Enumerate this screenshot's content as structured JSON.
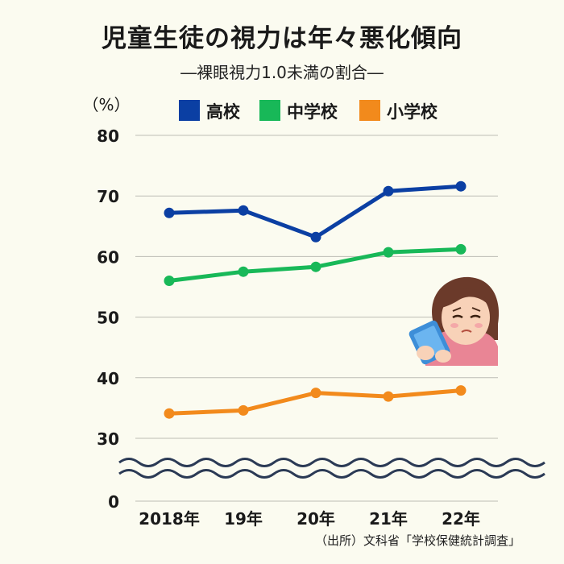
{
  "chart_data": {
    "type": "line",
    "title": "児童生徒の視力は年々悪化傾向",
    "subtitle": "―裸眼視力1.0未満の割合―",
    "ylabel": "（%）",
    "categories": [
      "2018年",
      "19年",
      "20年",
      "21年",
      "22年"
    ],
    "y_ticks": [
      "80",
      "70",
      "60",
      "50",
      "40",
      "30",
      "0"
    ],
    "y_axis_break": "between 30 and 0",
    "grid": "horizontal",
    "legend_placement": "top",
    "series": [
      {
        "name": "高校",
        "color": "#0b3fa3",
        "values": [
          67.2,
          67.6,
          63.2,
          70.8,
          71.6
        ]
      },
      {
        "name": "中学校",
        "color": "#18b858",
        "values": [
          56.0,
          57.5,
          58.3,
          60.7,
          61.2
        ]
      },
      {
        "name": "小学校",
        "color": "#f28a1c",
        "values": [
          34.1,
          34.6,
          37.5,
          36.9,
          37.9
        ]
      }
    ],
    "source": "（出所）文科省「学校保健統計調査」"
  },
  "illustration": {
    "icon": "girl-looking-at-smartphone-icon"
  }
}
